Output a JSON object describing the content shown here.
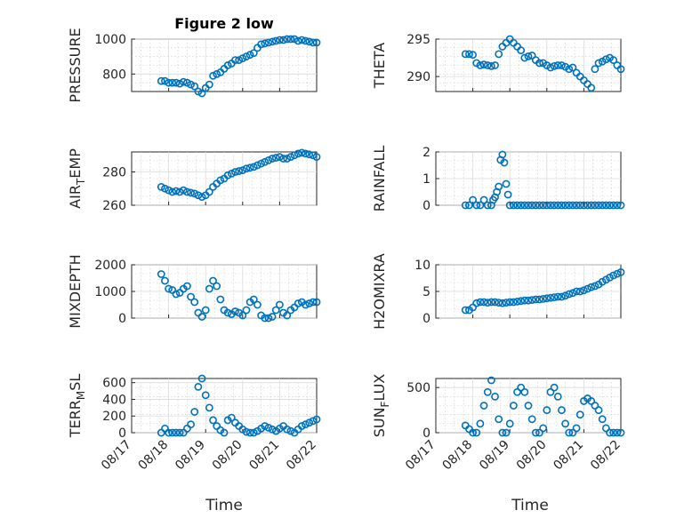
{
  "figure": {
    "title": "Figure 2 low",
    "xlabel": "Time",
    "dates": [
      "08/17",
      "08/18",
      "08/19",
      "08/20",
      "08/21",
      "08/22"
    ],
    "marker_color": "#0072bd"
  },
  "chart_data": [
    {
      "type": "scatter",
      "title": "Figure 2 low",
      "ylabel": "PRESSURE",
      "ylim": [
        700,
        1000
      ],
      "yticks": [
        800,
        1000
      ],
      "series": [
        {
          "x": [
            0.8,
            0.9,
            1.0,
            1.1,
            1.2,
            1.3,
            1.4,
            1.5,
            1.6,
            1.7,
            1.8,
            1.9,
            2.0,
            2.1,
            2.2,
            2.3,
            2.4,
            2.5,
            2.6,
            2.7,
            2.8,
            2.9,
            3.0,
            3.1,
            3.2,
            3.3,
            3.4,
            3.5,
            3.6,
            3.7,
            3.8,
            3.9,
            4.0,
            4.1,
            4.2,
            4.3,
            4.4,
            4.5,
            4.6,
            4.7,
            4.8,
            4.9,
            5.0
          ],
          "y": [
            760,
            760,
            750,
            750,
            750,
            745,
            755,
            750,
            740,
            730,
            700,
            690,
            720,
            740,
            790,
            800,
            810,
            830,
            850,
            860,
            880,
            880,
            890,
            900,
            910,
            920,
            950,
            970,
            975,
            980,
            985,
            990,
            995,
            995,
            1000,
            1000,
            1000,
            990,
            995,
            990,
            985,
            980,
            980
          ]
        }
      ]
    },
    {
      "type": "scatter",
      "ylabel": "THETA",
      "ylim": [
        288,
        295
      ],
      "yticks": [
        290,
        295
      ],
      "series": [
        {
          "x": [
            0.8,
            0.9,
            1.0,
            1.1,
            1.2,
            1.3,
            1.4,
            1.5,
            1.6,
            1.7,
            1.8,
            1.9,
            2.0,
            2.1,
            2.2,
            2.3,
            2.4,
            2.5,
            2.6,
            2.7,
            2.8,
            2.9,
            3.0,
            3.1,
            3.2,
            3.3,
            3.4,
            3.5,
            3.6,
            3.7,
            3.8,
            3.9,
            4.0,
            4.1,
            4.2,
            4.3,
            4.4,
            4.5,
            4.6,
            4.7,
            4.8,
            4.9,
            5.0
          ],
          "y": [
            293,
            293,
            292.9,
            291.8,
            291.5,
            291.6,
            291.5,
            291.4,
            291.5,
            293,
            294,
            294.5,
            295,
            294.5,
            294,
            293.5,
            292.5,
            292.7,
            292.8,
            292.2,
            291.8,
            291.8,
            291.5,
            291.2,
            291.4,
            291.5,
            291.5,
            291.3,
            291,
            291.2,
            290.5,
            290,
            289.5,
            289,
            288.5,
            291,
            291.8,
            292,
            292.3,
            292.5,
            292.2,
            291.5,
            291
          ]
        }
      ]
    },
    {
      "type": "scatter",
      "ylabel": "AIR_TEMP",
      "ylim": [
        260,
        292
      ],
      "yticks": [
        260,
        280
      ],
      "series": [
        {
          "x": [
            0.8,
            0.9,
            1.0,
            1.1,
            1.2,
            1.3,
            1.4,
            1.5,
            1.6,
            1.7,
            1.8,
            1.9,
            2.0,
            2.1,
            2.2,
            2.3,
            2.4,
            2.5,
            2.6,
            2.7,
            2.8,
            2.9,
            3.0,
            3.1,
            3.2,
            3.3,
            3.4,
            3.5,
            3.6,
            3.7,
            3.8,
            3.9,
            4.0,
            4.1,
            4.2,
            4.3,
            4.4,
            4.5,
            4.6,
            4.7,
            4.8,
            4.9,
            5.0
          ],
          "y": [
            271,
            270,
            269,
            268,
            268.5,
            268,
            269,
            268,
            267.5,
            267,
            266,
            265,
            266,
            268,
            271,
            273,
            275,
            276,
            278,
            279,
            280,
            280.5,
            281,
            282,
            282.5,
            283,
            284,
            285,
            286,
            287,
            288,
            288.5,
            289,
            288,
            288,
            289,
            290,
            291,
            291.5,
            291,
            290.5,
            290,
            289
          ]
        }
      ]
    },
    {
      "type": "scatter",
      "ylabel": "RAINFALL",
      "ylim": [
        0,
        2
      ],
      "yticks": [
        0,
        1,
        2
      ],
      "series": [
        {
          "x": [
            0.8,
            0.9,
            1.0,
            1.1,
            1.2,
            1.3,
            1.4,
            1.5,
            1.55,
            1.6,
            1.65,
            1.7,
            1.75,
            1.8,
            1.85,
            1.9,
            1.95,
            2.0,
            2.1,
            2.2,
            2.3,
            2.4,
            2.5,
            2.6,
            2.7,
            2.8,
            2.9,
            3.0,
            3.1,
            3.2,
            3.3,
            3.4,
            3.5,
            3.6,
            3.7,
            3.8,
            3.9,
            4.0,
            4.1,
            4.2,
            4.3,
            4.4,
            4.5,
            4.6,
            4.7,
            4.8,
            4.9,
            5.0
          ],
          "y": [
            0,
            0,
            0.2,
            0,
            0,
            0.2,
            0,
            0,
            0.2,
            0.3,
            0.5,
            0.7,
            1.7,
            1.9,
            1.6,
            0.8,
            0.4,
            0,
            0,
            0,
            0,
            0,
            0,
            0,
            0,
            0,
            0,
            0,
            0,
            0,
            0,
            0,
            0,
            0,
            0,
            0,
            0,
            0,
            0,
            0,
            0,
            0,
            0,
            0,
            0,
            0,
            0,
            0
          ]
        }
      ]
    },
    {
      "type": "scatter",
      "ylabel": "MIXDEPTH",
      "ylim": [
        0,
        2000
      ],
      "yticks": [
        0,
        1000,
        2000
      ],
      "series": [
        {
          "x": [
            0.8,
            0.9,
            1.0,
            1.1,
            1.2,
            1.3,
            1.4,
            1.5,
            1.6,
            1.7,
            1.8,
            1.9,
            2.0,
            2.1,
            2.2,
            2.3,
            2.4,
            2.5,
            2.6,
            2.7,
            2.8,
            2.9,
            3.0,
            3.1,
            3.2,
            3.3,
            3.4,
            3.5,
            3.6,
            3.7,
            3.8,
            3.9,
            4.0,
            4.1,
            4.2,
            4.3,
            4.4,
            4.5,
            4.6,
            4.7,
            4.8,
            4.9,
            5.0
          ],
          "y": [
            1650,
            1400,
            1100,
            1050,
            900,
            950,
            1100,
            1200,
            800,
            600,
            200,
            50,
            300,
            1100,
            1400,
            1200,
            700,
            300,
            200,
            150,
            250,
            200,
            100,
            300,
            600,
            700,
            500,
            100,
            0,
            0,
            50,
            300,
            500,
            200,
            100,
            300,
            400,
            550,
            600,
            500,
            550,
            600,
            600
          ]
        }
      ]
    },
    {
      "type": "scatter",
      "ylabel": "H2OMIXRA",
      "ylim": [
        0,
        10
      ],
      "yticks": [
        0,
        5,
        10
      ],
      "series": [
        {
          "x": [
            0.8,
            0.9,
            1.0,
            1.1,
            1.2,
            1.3,
            1.4,
            1.5,
            1.6,
            1.7,
            1.8,
            1.9,
            2.0,
            2.1,
            2.2,
            2.3,
            2.4,
            2.5,
            2.6,
            2.7,
            2.8,
            2.9,
            3.0,
            3.1,
            3.2,
            3.3,
            3.4,
            3.5,
            3.6,
            3.7,
            3.8,
            3.9,
            4.0,
            4.1,
            4.2,
            4.3,
            4.4,
            4.5,
            4.6,
            4.7,
            4.8,
            4.9,
            5.0
          ],
          "y": [
            1.5,
            1.5,
            2,
            2.8,
            3,
            3,
            2.9,
            3,
            3,
            2.9,
            2.8,
            2.9,
            3,
            3,
            3.1,
            3.2,
            3.3,
            3.3,
            3.4,
            3.5,
            3.5,
            3.6,
            3.7,
            3.8,
            3.9,
            4,
            4,
            4.2,
            4.5,
            4.7,
            5,
            5,
            5.2,
            5.5,
            5.8,
            6,
            6.3,
            6.8,
            7.2,
            7.6,
            8,
            8.3,
            8.6
          ]
        }
      ]
    },
    {
      "type": "scatter",
      "ylabel": "TERR_MSL",
      "ylim": [
        0,
        650
      ],
      "yticks": [
        0,
        200,
        400,
        600
      ],
      "series": [
        {
          "x": [
            0.8,
            0.9,
            1.0,
            1.1,
            1.2,
            1.3,
            1.4,
            1.5,
            1.6,
            1.7,
            1.8,
            1.9,
            2.0,
            2.1,
            2.2,
            2.3,
            2.4,
            2.5,
            2.6,
            2.7,
            2.8,
            2.9,
            3.0,
            3.1,
            3.2,
            3.3,
            3.4,
            3.5,
            3.6,
            3.7,
            3.8,
            3.9,
            4.0,
            4.1,
            4.2,
            4.3,
            4.4,
            4.5,
            4.6,
            4.7,
            4.8,
            4.9,
            5.0
          ],
          "y": [
            0,
            50,
            0,
            0,
            0,
            0,
            0,
            50,
            100,
            250,
            550,
            650,
            450,
            300,
            150,
            80,
            30,
            0,
            150,
            180,
            120,
            80,
            40,
            10,
            0,
            0,
            20,
            50,
            80,
            60,
            40,
            20,
            50,
            80,
            40,
            20,
            0,
            40,
            80,
            100,
            120,
            140,
            160
          ]
        }
      ]
    },
    {
      "type": "scatter",
      "ylabel": "SUN_FLUX",
      "ylim": [
        0,
        600
      ],
      "yticks": [
        0,
        500
      ],
      "series": [
        {
          "x": [
            0.8,
            0.9,
            1.0,
            1.1,
            1.2,
            1.3,
            1.4,
            1.5,
            1.6,
            1.7,
            1.8,
            1.9,
            2.0,
            2.1,
            2.2,
            2.3,
            2.4,
            2.5,
            2.6,
            2.7,
            2.8,
            2.9,
            3.0,
            3.1,
            3.2,
            3.3,
            3.4,
            3.5,
            3.6,
            3.7,
            3.8,
            3.9,
            4.0,
            4.1,
            4.2,
            4.3,
            4.4,
            4.5,
            4.6,
            4.7,
            4.8,
            4.9,
            5.0
          ],
          "y": [
            80,
            40,
            0,
            0,
            100,
            300,
            450,
            580,
            400,
            150,
            0,
            0,
            100,
            300,
            450,
            500,
            450,
            300,
            150,
            0,
            0,
            50,
            250,
            450,
            500,
            400,
            250,
            100,
            0,
            0,
            50,
            200,
            350,
            380,
            350,
            300,
            250,
            150,
            50,
            0,
            0,
            0,
            0
          ]
        }
      ]
    }
  ]
}
